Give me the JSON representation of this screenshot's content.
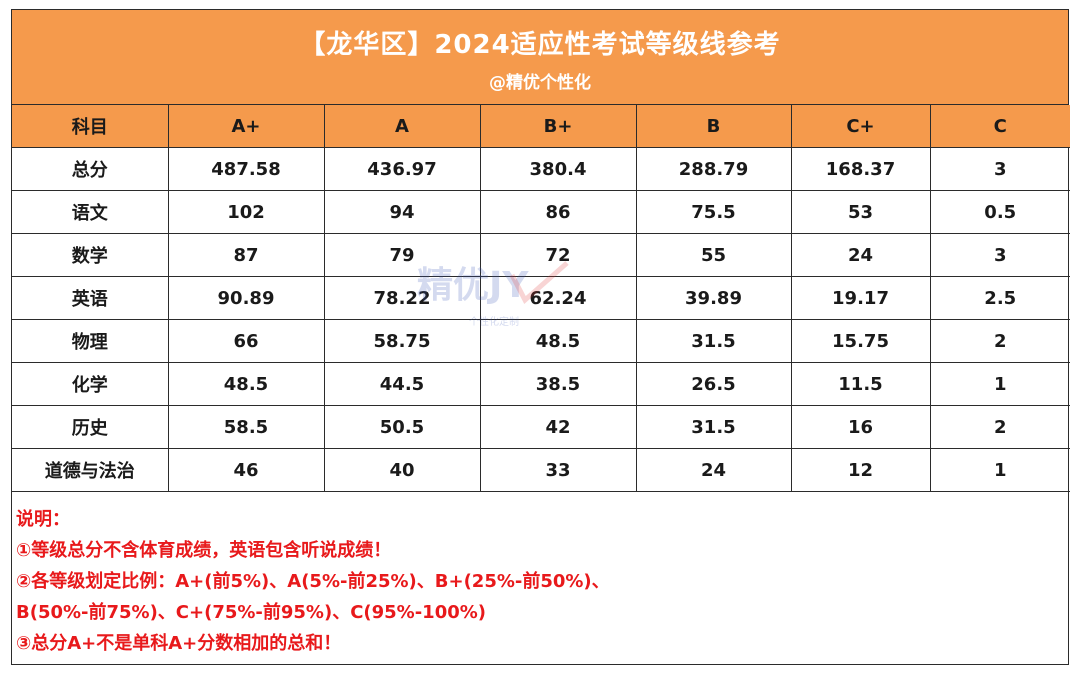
{
  "header": {
    "title": "【龙华区】2024适应性考试等级线参考",
    "subtitle": "@精优个性化"
  },
  "table": {
    "columns": [
      "科目",
      "A+",
      "A",
      "B+",
      "B",
      "C+",
      "C"
    ],
    "rows": [
      [
        "总分",
        "487.58",
        "436.97",
        "380.4",
        "288.79",
        "168.37",
        "3"
      ],
      [
        "语文",
        "102",
        "94",
        "86",
        "75.5",
        "53",
        "0.5"
      ],
      [
        "数学",
        "87",
        "79",
        "72",
        "55",
        "24",
        "3"
      ],
      [
        "英语",
        "90.89",
        "78.22",
        "62.24",
        "39.89",
        "19.17",
        "2.5"
      ],
      [
        "物理",
        "66",
        "58.75",
        "48.5",
        "31.5",
        "15.75",
        "2"
      ],
      [
        "化学",
        "48.5",
        "44.5",
        "38.5",
        "26.5",
        "11.5",
        "1"
      ],
      [
        "历史",
        "58.5",
        "50.5",
        "42",
        "31.5",
        "16",
        "2"
      ],
      [
        "道德与法治",
        "46",
        "40",
        "33",
        "24",
        "12",
        "1"
      ]
    ]
  },
  "notes": {
    "heading": "说明：",
    "line1": "①等级总分不含体育成绩，英语包含听说成绩！",
    "line2": "②各等级划定比例：A+(前5%)、A(5%-前25%)、B+(25%-前50%)、",
    "line3": "B(50%-前75%)、C+(75%-前95%)、C(95%-100%)",
    "line4": "③总分A+不是单科A+分数相加的总和！"
  },
  "watermark": {
    "text": "精优JY",
    "small": "个性化定制"
  },
  "colors": {
    "accent": "#f59a4c",
    "notes": "#e8191b",
    "border": "#2b2b2b"
  }
}
